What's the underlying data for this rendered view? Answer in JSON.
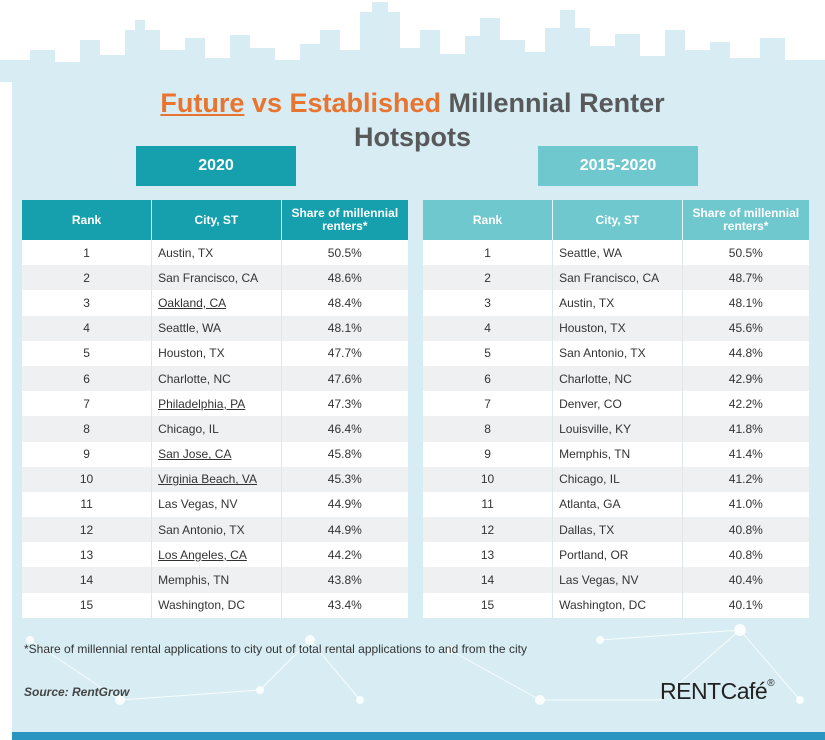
{
  "title": {
    "future": "Future",
    "vs": "vs",
    "established": "Established",
    "rest_line1": "Millennial Renter",
    "rest_line2": "Hotspots"
  },
  "left_table": {
    "ribbon": "2020",
    "headers": {
      "rank": "Rank",
      "city": "City, ST",
      "share": "Share of millennial renters*"
    },
    "rows": [
      {
        "rank": "1",
        "city": "Austin, TX",
        "share": "50.5%",
        "underlined": false
      },
      {
        "rank": "2",
        "city": "San Francisco, CA",
        "share": "48.6%",
        "underlined": false
      },
      {
        "rank": "3",
        "city": "Oakland, CA",
        "share": "48.4%",
        "underlined": true
      },
      {
        "rank": "4",
        "city": "Seattle, WA",
        "share": "48.1%",
        "underlined": false
      },
      {
        "rank": "5",
        "city": "Houston, TX",
        "share": "47.7%",
        "underlined": false
      },
      {
        "rank": "6",
        "city": "Charlotte, NC",
        "share": "47.6%",
        "underlined": false
      },
      {
        "rank": "7",
        "city": "Philadelphia, PA",
        "share": "47.3%",
        "underlined": true
      },
      {
        "rank": "8",
        "city": "Chicago, IL",
        "share": "46.4%",
        "underlined": false
      },
      {
        "rank": "9",
        "city": "San Jose, CA",
        "share": "45.8%",
        "underlined": true
      },
      {
        "rank": "10",
        "city": "Virginia Beach, VA",
        "share": "45.3%",
        "underlined": true
      },
      {
        "rank": "11",
        "city": "Las Vegas, NV",
        "share": "44.9%",
        "underlined": false
      },
      {
        "rank": "12",
        "city": "San Antonio, TX",
        "share": "44.9%",
        "underlined": false
      },
      {
        "rank": "13",
        "city": "Los Angeles, CA",
        "share": "44.2%",
        "underlined": true
      },
      {
        "rank": "14",
        "city": "Memphis, TN",
        "share": "43.8%",
        "underlined": false
      },
      {
        "rank": "15",
        "city": "Washington, DC",
        "share": "43.4%",
        "underlined": false
      }
    ]
  },
  "right_table": {
    "ribbon": "2015-2020",
    "headers": {
      "rank": "Rank",
      "city": "City, ST",
      "share": "Share of millennial renters*"
    },
    "rows": [
      {
        "rank": "1",
        "city": "Seattle, WA",
        "share": "50.5%"
      },
      {
        "rank": "2",
        "city": "San Francisco, CA",
        "share": "48.7%"
      },
      {
        "rank": "3",
        "city": "Austin, TX",
        "share": "48.1%"
      },
      {
        "rank": "4",
        "city": "Houston, TX",
        "share": "45.6%"
      },
      {
        "rank": "5",
        "city": "San Antonio, TX",
        "share": "44.8%"
      },
      {
        "rank": "6",
        "city": "Charlotte, NC",
        "share": "42.9%"
      },
      {
        "rank": "7",
        "city": "Denver, CO",
        "share": "42.2%"
      },
      {
        "rank": "8",
        "city": "Louisville, KY",
        "share": "41.8%"
      },
      {
        "rank": "9",
        "city": "Memphis, TN",
        "share": "41.4%"
      },
      {
        "rank": "10",
        "city": "Chicago, IL",
        "share": "41.2%"
      },
      {
        "rank": "11",
        "city": "Atlanta, GA",
        "share": "41.0%"
      },
      {
        "rank": "12",
        "city": "Dallas, TX",
        "share": "40.8%"
      },
      {
        "rank": "13",
        "city": "Portland, OR",
        "share": "40.8%"
      },
      {
        "rank": "14",
        "city": "Las Vegas, NV",
        "share": "40.4%"
      },
      {
        "rank": "15",
        "city": "Washington, DC",
        "share": "40.1%"
      }
    ]
  },
  "footnote": "*Share of millennial rental applications to city out of total rental applications to and from the city",
  "source": "Source: RentGrow",
  "logo": {
    "text": "RENTCafé",
    "reg": "®"
  },
  "colors": {
    "accent_orange": "#e8742f",
    "teal_dark": "#16a0ad",
    "teal_light": "#70c8cf",
    "panel_bg": "#d7edf3",
    "title_gray": "#58595b"
  }
}
